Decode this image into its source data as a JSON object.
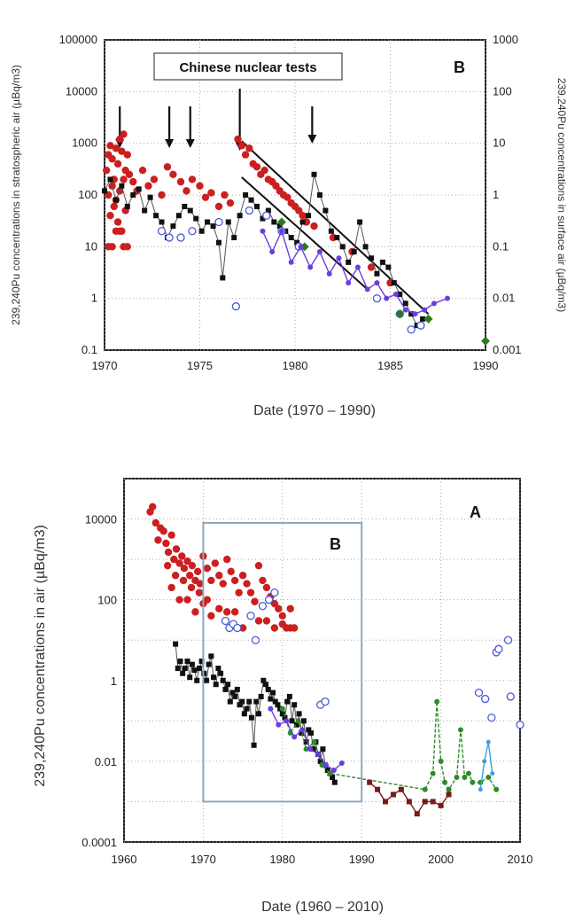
{
  "chart_data": [
    {
      "type": "scatter",
      "panel_label": "B",
      "annotation": "Chinese nuclear tests",
      "xlabel": "Date (1970 – 1990)",
      "ylabel_left": "239,240Pu concentrations in stratospheric air  (µBq/m3)",
      "ylabel_right": "239,240Pu concentrations in surface air  (µBq/m3)",
      "xlim": [
        1970,
        1990
      ],
      "ylim_left": [
        0.1,
        100000
      ],
      "ylim_right": [
        0.001,
        1000
      ],
      "y_scale": "log",
      "x_ticks": [
        "1970",
        "1975",
        "1980",
        "1985",
        "1990"
      ],
      "y_ticks_left": [
        "0.1",
        "1",
        "10",
        "100",
        "1000",
        "10000",
        "100000"
      ],
      "y_ticks_right": [
        "0.001",
        "0.01",
        "0.1",
        "1",
        "10",
        "100",
        "1000"
      ],
      "grid": "dotted",
      "arrows_x": [
        1970.8,
        1973.4,
        1974.5,
        1977.1,
        1980.9
      ],
      "trend_lines": [
        {
          "x": [
            1977.2,
            1987.0
          ],
          "y": [
            1100,
            0.5
          ]
        },
        {
          "x": [
            1977.2,
            1983.8
          ],
          "y": [
            220,
            1.5
          ]
        }
      ],
      "series": [
        {
          "marker": "red-filled-circle",
          "axis": "left",
          "x": [
            1970.1,
            1970.2,
            1970.3,
            1970.4,
            1970.5,
            1970.6,
            1970.7,
            1970.8,
            1970.9,
            1971.0,
            1971.1,
            1971.2,
            1970.2,
            1970.4,
            1970.6,
            1970.8,
            1971.0,
            1970.3,
            1970.5,
            1970.7,
            1970.9,
            1971.1,
            1970.2,
            1970.6,
            1971.0,
            1971.3,
            1971.5,
            1971.7,
            1972.0,
            1972.3,
            1972.6,
            1973.0,
            1973.3,
            1973.6,
            1974.0,
            1974.3,
            1974.6,
            1975.0,
            1975.3,
            1975.6,
            1976.0,
            1976.3,
            1976.6,
            1977.0,
            1977.2,
            1977.4,
            1977.6,
            1977.8,
            1978.0,
            1978.2,
            1978.4,
            1978.6,
            1978.8,
            1979.0,
            1979.2,
            1979.4,
            1979.6,
            1979.8,
            1980.0,
            1980.2,
            1980.4,
            1980.6,
            1981.0,
            1982.0,
            1983.0,
            1984.0,
            1985.0,
            1970.4,
            1970.8,
            1971.2
          ],
          "y": [
            300,
            600,
            900,
            500,
            200,
            800,
            400,
            1200,
            700,
            1500,
            300,
            600,
            100,
            150,
            80,
            120,
            200,
            40,
            60,
            30,
            20,
            50,
            10,
            20,
            10,
            250,
            180,
            120,
            300,
            150,
            200,
            100,
            350,
            250,
            180,
            120,
            200,
            150,
            90,
            110,
            60,
            100,
            70,
            1200,
            900,
            600,
            800,
            400,
            350,
            250,
            300,
            200,
            180,
            150,
            120,
            100,
            90,
            70,
            60,
            50,
            40,
            30,
            25,
            15,
            8,
            4,
            2,
            10,
            20,
            10
          ]
        },
        {
          "marker": "black-square",
          "axis": "right",
          "x": [
            1970.0,
            1970.3,
            1970.6,
            1970.9,
            1971.2,
            1971.5,
            1971.8,
            1972.1,
            1972.4,
            1972.7,
            1973.0,
            1973.3,
            1973.6,
            1973.9,
            1974.2,
            1974.5,
            1974.8,
            1975.1,
            1975.4,
            1975.7,
            1976.0,
            1976.2,
            1976.5,
            1976.8,
            1977.1,
            1977.4,
            1977.7,
            1978.0,
            1978.3,
            1978.6,
            1978.9,
            1979.2,
            1979.5,
            1979.8,
            1980.1,
            1980.4,
            1980.7,
            1981.0,
            1981.3,
            1981.6,
            1981.9,
            1982.2,
            1982.5,
            1982.8,
            1983.1,
            1983.4,
            1983.7,
            1984.0,
            1984.3,
            1984.6,
            1984.9,
            1985.2,
            1985.5,
            1985.8,
            1986.1,
            1986.4,
            1986.7
          ],
          "y": [
            1.2,
            2.0,
            0.8,
            1.5,
            0.6,
            1.0,
            1.3,
            0.5,
            0.9,
            0.4,
            0.3,
            0.15,
            0.25,
            0.4,
            0.6,
            0.5,
            0.35,
            0.2,
            0.3,
            0.25,
            0.12,
            0.025,
            0.3,
            0.15,
            0.4,
            1.0,
            0.8,
            0.6,
            0.35,
            0.5,
            0.3,
            0.25,
            0.2,
            0.15,
            0.12,
            0.3,
            0.4,
            2.5,
            1.0,
            0.5,
            0.2,
            0.15,
            0.1,
            0.05,
            0.08,
            0.3,
            0.1,
            0.06,
            0.03,
            0.05,
            0.04,
            0.02,
            0.012,
            0.008,
            0.005,
            0.003,
            0.004
          ]
        },
        {
          "marker": "blue-open-circle",
          "axis": "right",
          "x": [
            1973.0,
            1973.4,
            1974.0,
            1974.6,
            1976.0,
            1976.9,
            1977.6,
            1978.5,
            1979.3,
            1980.2,
            1984.3,
            1985.5,
            1986.1,
            1986.6
          ],
          "y": [
            0.2,
            0.15,
            0.15,
            0.2,
            0.3,
            0.007,
            0.5,
            0.4,
            0.2,
            0.1,
            0.01,
            0.005,
            0.0025,
            0.003
          ]
        },
        {
          "marker": "green-diamond",
          "axis": "right",
          "x": [
            1979.3,
            1980.5,
            1985.5,
            1987.0,
            1990.0
          ],
          "y": [
            0.3,
            0.1,
            0.005,
            0.004,
            0.0015
          ]
        },
        {
          "marker": "purple-line",
          "axis": "right",
          "x": [
            1978.3,
            1978.8,
            1979.3,
            1979.8,
            1980.3,
            1980.8,
            1981.3,
            1981.8,
            1982.3,
            1982.8,
            1983.3,
            1983.8,
            1984.3,
            1984.8,
            1985.3,
            1985.8,
            1986.3,
            1986.8,
            1987.3,
            1988.0
          ],
          "y": [
            0.2,
            0.08,
            0.2,
            0.05,
            0.1,
            0.04,
            0.08,
            0.03,
            0.06,
            0.02,
            0.04,
            0.015,
            0.02,
            0.01,
            0.012,
            0.006,
            0.005,
            0.006,
            0.008,
            0.01
          ]
        }
      ]
    },
    {
      "type": "scatter",
      "panel_label": "A",
      "inset_label": "B",
      "xlabel": "Date (1960 – 2010)",
      "ylabel": "239,240Pu concentrations in  air  (µBq/m3)",
      "xlim": [
        1960,
        2010
      ],
      "ylim": [
        0.0001,
        100000
      ],
      "y_scale": "log",
      "x_ticks": [
        "1960",
        "1970",
        "1980",
        "1990",
        "2000",
        "2010"
      ],
      "y_ticks": [
        "0.0001",
        "0.01",
        "1",
        "100",
        "10000"
      ],
      "grid": "dotted",
      "highlight_box": {
        "x": [
          1970,
          1990
        ],
        "y": [
          0.001,
          8000
        ]
      },
      "series": [
        {
          "marker": "red-filled-circle",
          "x": [
            1963.3,
            1963.6,
            1964.0,
            1964.3,
            1964.6,
            1965.0,
            1965.3,
            1965.6,
            1966.0,
            1966.3,
            1966.6,
            1967.0,
            1967.3,
            1967.6,
            1968.0,
            1968.3,
            1968.6,
            1969.0,
            1969.3,
            1969.6,
            1970.0,
            1970.5,
            1971.0,
            1971.5,
            1972.0,
            1972.5,
            1973.0,
            1973.5,
            1974.0,
            1974.5,
            1975.0,
            1975.5,
            1976.0,
            1976.5,
            1977.0,
            1977.5,
            1978.0,
            1978.5,
            1979.0,
            1979.5,
            1980.0,
            1980.5,
            1981.0,
            1981.5,
            1965.5,
            1966.5,
            1967.5,
            1968.5,
            1969.5,
            1970.5,
            1972.0,
            1974.0,
            1976.0,
            1978.0,
            1980.0,
            1966.0,
            1968.0,
            1970.0,
            1973.0,
            1977.0,
            1967.0,
            1969.0,
            1971.0,
            1975.0,
            1979.0,
            1981.0
          ],
          "y": [
            15000,
            20000,
            8000,
            3000,
            6000,
            5000,
            2500,
            1500,
            4000,
            1000,
            1800,
            800,
            1200,
            600,
            900,
            400,
            700,
            300,
            500,
            250,
            1200,
            600,
            300,
            800,
            400,
            250,
            1000,
            500,
            300,
            150,
            400,
            250,
            150,
            90,
            700,
            300,
            200,
            120,
            80,
            60,
            40,
            20,
            20,
            20,
            700,
            400,
            300,
            200,
            150,
            100,
            60,
            50,
            40,
            30,
            25,
            200,
            100,
            80,
            50,
            30,
            100,
            50,
            40,
            20,
            20,
            60
          ]
        },
        {
          "marker": "black-square",
          "x": [
            1966.5,
            1966.8,
            1967.1,
            1967.4,
            1967.7,
            1968.0,
            1968.3,
            1968.6,
            1968.9,
            1969.2,
            1969.5,
            1969.8,
            1970.1,
            1970.4,
            1970.7,
            1971.0,
            1971.3,
            1971.6,
            1971.9,
            1972.2,
            1972.5,
            1972.8,
            1973.1,
            1973.4,
            1973.7,
            1974.0,
            1974.3,
            1974.6,
            1974.9,
            1975.2,
            1975.5,
            1975.8,
            1976.1,
            1976.4,
            1976.7,
            1977.0,
            1977.3,
            1977.6,
            1977.9,
            1978.2,
            1978.5,
            1978.8,
            1979.1,
            1979.4,
            1979.7,
            1980.0,
            1980.3,
            1980.6,
            1980.9,
            1981.2,
            1981.5,
            1981.8,
            1982.1,
            1982.4,
            1982.7,
            1983.0,
            1983.3,
            1983.6,
            1983.9,
            1984.2,
            1984.5,
            1984.8,
            1985.1,
            1985.4,
            1985.7,
            1986.0,
            1986.3,
            1986.6
          ],
          "y": [
            8,
            2,
            3,
            1.5,
            2,
            3,
            1.2,
            2.5,
            1.8,
            1,
            2,
            3,
            1.5,
            1,
            2.5,
            4,
            1.2,
            0.8,
            2,
            1.5,
            1,
            0.6,
            0.8,
            0.3,
            0.5,
            0.4,
            0.6,
            0.25,
            0.3,
            0.15,
            0.2,
            0.3,
            0.12,
            0.025,
            0.3,
            0.15,
            0.4,
            1,
            0.8,
            0.6,
            0.35,
            0.5,
            0.3,
            0.25,
            0.2,
            0.15,
            0.12,
            0.3,
            0.4,
            0.1,
            0.25,
            0.08,
            0.15,
            0.05,
            0.1,
            0.03,
            0.06,
            0.05,
            0.02,
            0.03,
            0.015,
            0.01,
            0.02,
            0.008,
            0.006,
            0.005,
            0.004,
            0.003
          ]
        },
        {
          "marker": "blue-open-circle",
          "x": [
            1972.8,
            1973.3,
            1973.8,
            1974.3,
            1976.0,
            1976.6,
            1977.5,
            1978.3,
            1979.0,
            1984.8,
            1985.4,
            2004.8,
            2005.6,
            2006.4,
            2007.0,
            2007.3,
            2008.5,
            2008.8,
            2010.0
          ],
          "y": [
            30,
            20,
            25,
            20,
            40,
            10,
            70,
            100,
            150,
            0.25,
            0.3,
            0.5,
            0.35,
            0.12,
            5,
            6,
            10,
            0.4,
            0.08
          ]
        },
        {
          "marker": "green-line",
          "x": [
            1980.0,
            1981.0,
            1982.0,
            1983.0,
            1984.0,
            1985.0,
            1986.0,
            1998.0,
            1999.0,
            1999.5,
            2000.0,
            2000.5,
            2001.0,
            2002.0,
            2002.5,
            2003.0,
            2003.5,
            2004.0,
            2005.0,
            2006.0,
            2007.0
          ],
          "y": [
            0.2,
            0.05,
            0.1,
            0.02,
            0.03,
            0.008,
            0.005,
            0.002,
            0.005,
            0.3,
            0.01,
            0.003,
            0.002,
            0.004,
            0.06,
            0.004,
            0.005,
            0.003,
            0.003,
            0.004,
            0.002
          ]
        },
        {
          "marker": "purple-line",
          "x": [
            1978.5,
            1979.5,
            1980.5,
            1981.5,
            1982.5,
            1983.5,
            1984.5,
            1985.5,
            1986.5,
            1987.5
          ],
          "y": [
            0.2,
            0.08,
            0.1,
            0.04,
            0.06,
            0.02,
            0.015,
            0.008,
            0.006,
            0.009
          ]
        },
        {
          "marker": "darkred-square-line",
          "x": [
            1991.0,
            1992.0,
            1993.0,
            1994.0,
            1995.0,
            1996.0,
            1997.0,
            1998.0,
            1999.0,
            2000.0,
            2001.0
          ],
          "y": [
            0.003,
            0.002,
            0.001,
            0.0015,
            0.002,
            0.001,
            0.0005,
            0.001,
            0.001,
            0.0008,
            0.0015
          ]
        },
        {
          "marker": "lightblue-line",
          "x": [
            2005.0,
            2005.5,
            2006.0,
            2006.5
          ],
          "y": [
            0.002,
            0.01,
            0.03,
            0.005
          ]
        }
      ]
    }
  ]
}
